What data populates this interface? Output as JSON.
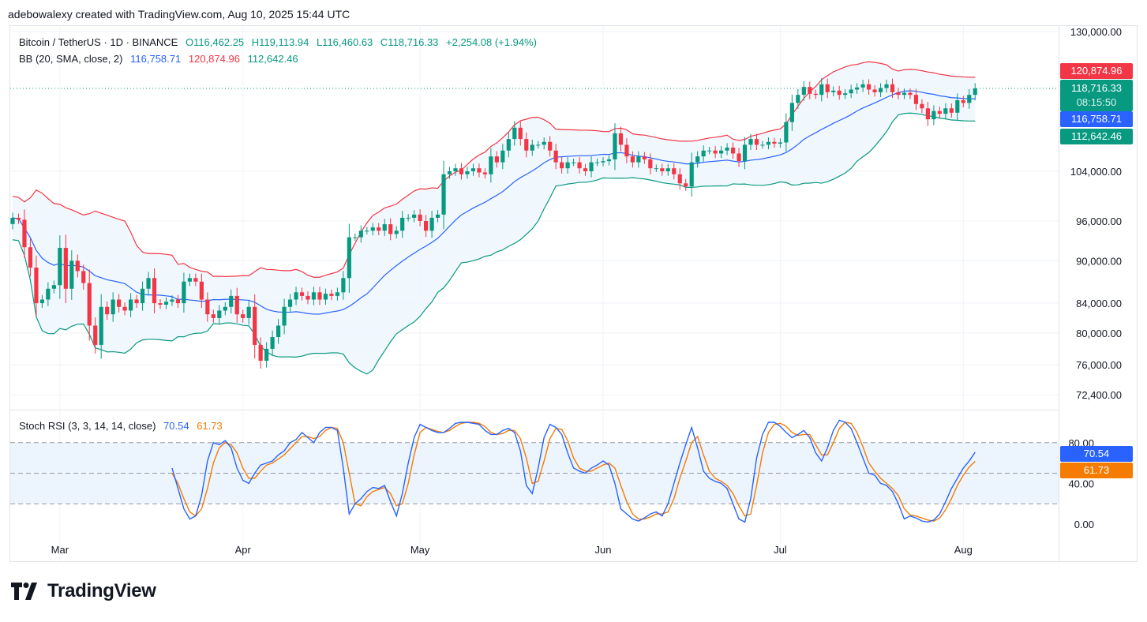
{
  "header": {
    "attribution": "adebowalexy created with TradingView.com, Aug 10, 2025 15:44 UTC"
  },
  "legend": {
    "symbol": "Bitcoin / TetherUS · 1D · BINANCE",
    "open": "O116,462.25",
    "high": "H119,113.94",
    "low": "L116,460.63",
    "close": "C118,716.33",
    "change": "+2,254.08 (+1.94%)",
    "bb_label": "BB (20, SMA, close, 2)",
    "bb_basis": "116,758.71",
    "bb_upper": "120,874.96",
    "bb_lower": "112,642.46",
    "stoch_label": "Stoch RSI (3, 3, 14, 14, close)",
    "stoch_k": "70.54",
    "stoch_d": "61.73"
  },
  "price_tags": {
    "upper": "120,874.96",
    "close": "118,716.33",
    "countdown": "08:15:50",
    "basis": "116,758.71",
    "lower": "112,642.46",
    "stoch_k": "70.54",
    "stoch_d": "61.73"
  },
  "colors": {
    "up": "#089981",
    "down": "#f23645",
    "basis": "#2962ff",
    "upper": "#f23645",
    "lower": "#089981",
    "k_line": "#2962ff",
    "d_line": "#f57c00",
    "band_fill": "#eef6fd"
  },
  "brand": {
    "name": "TradingView"
  },
  "chart_data": [
    {
      "type": "candlestick",
      "title": "Bitcoin / TetherUS · 1D · BINANCE",
      "x_ticks": [
        "Mar",
        "Apr",
        "May",
        "Jun",
        "Jul",
        "Aug"
      ],
      "y_ticks": [
        "130,000.00",
        "104,000.00",
        "96,000.00",
        "90,000.00",
        "84,000.00",
        "80,000.00",
        "76,000.00",
        "72,400.00"
      ],
      "y_tick_values": [
        130000,
        104000,
        96000,
        90000,
        84000,
        80000,
        76000,
        72400
      ],
      "ylim": [
        70800,
        131500
      ],
      "start_date": "2025-02-21",
      "closes": [
        96500,
        96200,
        92000,
        89000,
        84000,
        84500,
        86000,
        86500,
        91900,
        86000,
        90000,
        88500,
        86800,
        81000,
        78500,
        83500,
        82500,
        84500,
        83500,
        83000,
        84500,
        84000,
        86000,
        87500,
        84000,
        83800,
        84200,
        84500,
        84000,
        87000,
        87500,
        87000,
        84500,
        82500,
        82000,
        83000,
        83500,
        85000,
        82500,
        82000,
        83500,
        78500,
        76500,
        78000,
        79500,
        81000,
        83500,
        84500,
        85500,
        85000,
        84500,
        85500,
        84500,
        85300,
        85000,
        85500,
        87500,
        93500,
        93500,
        94500,
        94500,
        95000,
        94500,
        95500,
        94000,
        94500,
        96500,
        96500,
        97000,
        96000,
        94500,
        96500,
        97000,
        103500,
        104000,
        104500,
        103500,
        104000,
        104500,
        103800,
        103500,
        106500,
        105500,
        107500,
        109500,
        111500,
        109500,
        107500,
        108500,
        108500,
        109000,
        107500,
        105500,
        104500,
        105500,
        105500,
        104500,
        104000,
        105500,
        105500,
        105700,
        106000,
        110500,
        108500,
        106500,
        105500,
        106500,
        106000,
        104500,
        104500,
        104000,
        104500,
        103500,
        102000,
        101500,
        105500,
        106500,
        107500,
        107500,
        107000,
        107500,
        108000,
        107000,
        105700,
        108500,
        109500,
        108500,
        108500,
        109000,
        108700,
        108900,
        112500,
        116000,
        117500,
        119000,
        117700,
        117500,
        119500,
        118000,
        118300,
        117500,
        117800,
        118500,
        118900,
        119500,
        118500,
        118000,
        118800,
        119500,
        118000,
        117500,
        117900,
        117500,
        115800,
        115000,
        113000,
        114500,
        114000,
        115000,
        114200,
        116500,
        116000,
        117500,
        118716
      ],
      "bb_basis_last": 116758.71,
      "bb_upper_last": 120874.96,
      "bb_lower_last": 112642.46,
      "last_close": 118716.33
    },
    {
      "type": "line",
      "title": "Stoch RSI (3, 3, 14, 14, close)",
      "y_ticks": [
        "80.00",
        "40.00",
        "0.00"
      ],
      "y_tick_values": [
        80,
        40,
        0
      ],
      "levels": [
        80,
        50,
        20
      ],
      "ylim": [
        -10,
        108
      ],
      "series": [
        {
          "name": "K",
          "last": 70.54,
          "values": [
            55,
            35,
            15,
            5,
            8,
            28,
            62,
            80,
            78,
            82,
            75,
            55,
            43,
            40,
            50,
            58,
            60,
            62,
            68,
            72,
            80,
            83,
            90,
            85,
            80,
            90,
            95,
            95,
            92,
            55,
            10,
            20,
            25,
            32,
            36,
            35,
            38,
            22,
            8,
            30,
            60,
            85,
            98,
            95,
            92,
            90,
            90,
            94,
            99,
            100,
            100,
            99,
            98,
            92,
            88,
            88,
            92,
            94,
            90,
            72,
            38,
            30,
            55,
            85,
            98,
            95,
            88,
            70,
            55,
            52,
            50,
            55,
            58,
            62,
            58,
            40,
            15,
            10,
            5,
            3,
            6,
            10,
            12,
            8,
            20,
            40,
            60,
            78,
            95,
            75,
            52,
            45,
            42,
            40,
            35,
            20,
            5,
            2,
            25,
            65,
            88,
            100,
            100,
            96,
            90,
            85,
            88,
            92,
            85,
            70,
            62,
            75,
            92,
            102,
            100,
            94,
            80,
            65,
            50,
            48,
            40,
            38,
            32,
            20,
            5,
            8,
            6,
            3,
            2,
            4,
            10,
            22,
            35,
            45,
            55,
            62,
            70.54
          ]
        },
        {
          "name": "D",
          "last": 61.73,
          "values": [
            50,
            40,
            25,
            12,
            8,
            15,
            35,
            60,
            75,
            80,
            78,
            70,
            55,
            45,
            45,
            52,
            58,
            60,
            64,
            68,
            74,
            80,
            86,
            86,
            84,
            86,
            92,
            95,
            94,
            80,
            50,
            20,
            18,
            27,
            32,
            34,
            36,
            30,
            18,
            20,
            40,
            68,
            90,
            95,
            93,
            91,
            90,
            92,
            96,
            99,
            100,
            100,
            99,
            96,
            90,
            88,
            89,
            92,
            92,
            84,
            65,
            40,
            42,
            62,
            84,
            94,
            93,
            82,
            65,
            55,
            52,
            52,
            55,
            58,
            60,
            55,
            38,
            22,
            10,
            5,
            5,
            7,
            10,
            10,
            12,
            25,
            45,
            62,
            80,
            86,
            68,
            52,
            45,
            42,
            38,
            30,
            18,
            8,
            10,
            38,
            70,
            90,
            98,
            99,
            96,
            90,
            87,
            88,
            88,
            78,
            68,
            68,
            80,
            94,
            100,
            99,
            90,
            76,
            60,
            52,
            45,
            40,
            35,
            28,
            15,
            9,
            8,
            6,
            4,
            3,
            6,
            14,
            25,
            38,
            48,
            56,
            61.73
          ]
        }
      ]
    }
  ]
}
